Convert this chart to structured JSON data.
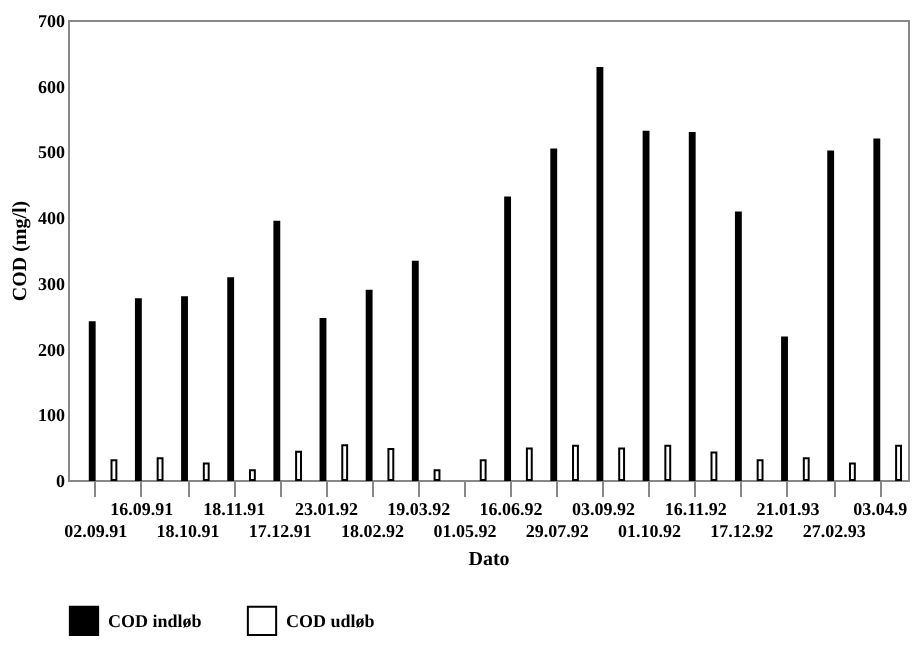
{
  "chart_data": {
    "type": "bar",
    "xlabel": "Dato",
    "ylabel": "COD (mg/l)",
    "categories": [
      "02.09.91",
      "16.09.91",
      "18.10.91",
      "18.11.91",
      "17.12.91",
      "23.01.92",
      "18.02.92",
      "19.03.92",
      "01.05.92",
      "16.06.92",
      "29.07.92",
      "03.09.92",
      "01.10.92",
      "16.11.92",
      "17.12.92",
      "21.01.93",
      "27.02.93",
      "03.04.9"
    ],
    "series": [
      {
        "name": "COD indløb",
        "color": "#000000",
        "values": [
          240,
          275,
          278,
          307,
          393,
          245,
          288,
          332,
          null,
          430,
          503,
          627,
          530,
          528,
          407,
          217,
          500,
          518
        ]
      },
      {
        "name": "COD udløb",
        "color": "#ffffff",
        "values": [
          30,
          33,
          25,
          15,
          43,
          53,
          47,
          15,
          30,
          48,
          52,
          48,
          52,
          42,
          30,
          33,
          25,
          52
        ]
      }
    ],
    "ylim": [
      0,
      700
    ],
    "yticks": [
      0,
      100,
      200,
      300,
      400,
      500,
      600,
      700
    ],
    "grid": false,
    "legend": "bottom"
  }
}
